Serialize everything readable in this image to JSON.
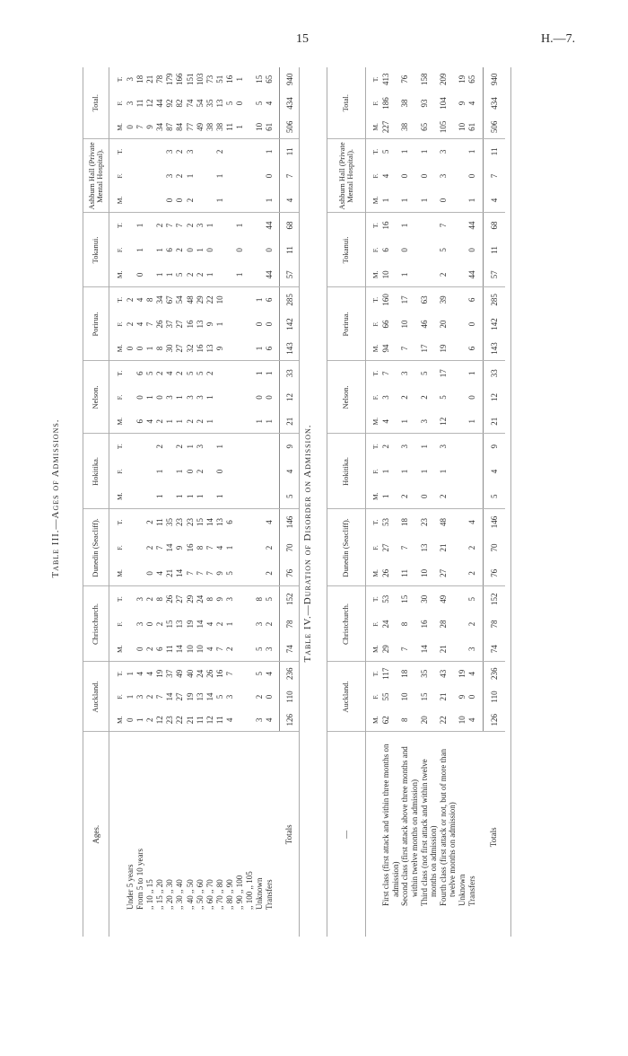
{
  "page": {
    "number": "15",
    "reference": "H.—7."
  },
  "sex_labels": [
    "M.",
    "F.",
    "T."
  ],
  "table_iii": {
    "title": "Table III.—Ages of Admissions.",
    "label_header": "Ages.",
    "columns": [
      "Auckland.",
      "Christchurch.",
      "Dunedin (Seacliff).",
      "Hokitika.",
      "Nelson.",
      "Porirua.",
      "Tokanui.",
      "Ashburn Hall (Private Mental Hospital).",
      "Total."
    ],
    "rows": [
      {
        "label": "Under 5 years",
        "cells": [
          [
            0,
            1,
            1
          ],
          [
            "",
            "",
            ""
          ],
          [
            "",
            "",
            ""
          ],
          [
            "",
            "",
            ""
          ],
          [
            "",
            "",
            ""
          ],
          [
            0,
            2,
            2
          ],
          [
            "",
            "",
            ""
          ],
          [
            "",
            "",
            ""
          ],
          [
            0,
            3,
            3
          ]
        ]
      },
      {
        "label": "From 5 to 10 years",
        "cells": [
          [
            1,
            3,
            4
          ],
          [
            0,
            3,
            3
          ],
          [
            "",
            "",
            ""
          ],
          [
            "",
            "",
            ""
          ],
          [
            6,
            0,
            6
          ],
          [
            0,
            4,
            4
          ],
          [
            0,
            1,
            1
          ],
          [
            "",
            "",
            ""
          ],
          [
            7,
            11,
            18
          ]
        ]
      },
      {
        "label": ",, 10 ,, 15",
        "cells": [
          [
            2,
            2,
            4
          ],
          [
            2,
            0,
            2
          ],
          [
            0,
            2,
            2
          ],
          [
            "",
            "",
            ""
          ],
          [
            4,
            1,
            5
          ],
          [
            1,
            7,
            8
          ],
          [
            "",
            "",
            ""
          ],
          [
            "",
            "",
            ""
          ],
          [
            9,
            12,
            21
          ]
        ]
      },
      {
        "label": ",, 15 ,, 20",
        "cells": [
          [
            12,
            7,
            19
          ],
          [
            6,
            2,
            8
          ],
          [
            4,
            7,
            11
          ],
          [
            1,
            1,
            2
          ],
          [
            2,
            0,
            2
          ],
          [
            8,
            26,
            34
          ],
          [
            1,
            1,
            2
          ],
          [
            "",
            "",
            ""
          ],
          [
            34,
            44,
            78
          ]
        ]
      },
      {
        "label": ",, 20 ,, 30",
        "cells": [
          [
            23,
            14,
            37
          ],
          [
            11,
            15,
            26
          ],
          [
            21,
            14,
            35
          ],
          [
            "",
            "",
            ""
          ],
          [
            1,
            3,
            4
          ],
          [
            30,
            37,
            67
          ],
          [
            1,
            6,
            7
          ],
          [
            0,
            3,
            3
          ],
          [
            87,
            92,
            179
          ]
        ]
      },
      {
        "label": ",, 30 ,, 40",
        "cells": [
          [
            22,
            27,
            49
          ],
          [
            14,
            13,
            27
          ],
          [
            14,
            9,
            23
          ],
          [
            1,
            1,
            2
          ],
          [
            1,
            1,
            2
          ],
          [
            27,
            27,
            54
          ],
          [
            5,
            2,
            7
          ],
          [
            0,
            2,
            2
          ],
          [
            84,
            82,
            166
          ]
        ]
      },
      {
        "label": ",, 40 ,, 50",
        "cells": [
          [
            21,
            19,
            40
          ],
          [
            10,
            19,
            29
          ],
          [
            7,
            16,
            23
          ],
          [
            1,
            0,
            1
          ],
          [
            2,
            3,
            5
          ],
          [
            32,
            16,
            48
          ],
          [
            2,
            0,
            2
          ],
          [
            2,
            1,
            3
          ],
          [
            77,
            74,
            151
          ]
        ]
      },
      {
        "label": ",, 50 ,, 60",
        "cells": [
          [
            11,
            13,
            24
          ],
          [
            10,
            14,
            24
          ],
          [
            7,
            8,
            15
          ],
          [
            1,
            2,
            3
          ],
          [
            2,
            3,
            5
          ],
          [
            16,
            13,
            29
          ],
          [
            2,
            1,
            3
          ],
          [
            "",
            "",
            ""
          ],
          [
            49,
            54,
            103
          ]
        ]
      },
      {
        "label": ",, 60 ,, 70",
        "cells": [
          [
            12,
            14,
            26
          ],
          [
            4,
            4,
            8
          ],
          [
            7,
            7,
            14
          ],
          [
            "",
            "",
            ""
          ],
          [
            1,
            1,
            2
          ],
          [
            13,
            9,
            22
          ],
          [
            1,
            0,
            1
          ],
          [
            "",
            "",
            ""
          ],
          [
            38,
            35,
            73
          ]
        ]
      },
      {
        "label": ",, 70 ,, 80",
        "cells": [
          [
            11,
            5,
            16
          ],
          [
            7,
            2,
            9
          ],
          [
            9,
            4,
            13
          ],
          [
            1,
            0,
            1
          ],
          [
            "",
            "",
            ""
          ],
          [
            9,
            1,
            10
          ],
          [
            "",
            "",
            ""
          ],
          [
            1,
            1,
            2
          ],
          [
            38,
            13,
            51
          ]
        ]
      },
      {
        "label": ",, 80 ,, 90",
        "cells": [
          [
            4,
            3,
            7
          ],
          [
            2,
            1,
            3
          ],
          [
            5,
            1,
            6
          ],
          [
            "",
            "",
            ""
          ],
          [
            "",
            "",
            ""
          ],
          [
            "",
            "",
            ""
          ],
          [
            "",
            "",
            ""
          ],
          [
            "",
            "",
            ""
          ],
          [
            11,
            5,
            16
          ]
        ]
      },
      {
        "label": ",, 90 ,, 100",
        "cells": [
          [
            "",
            "",
            ""
          ],
          [
            "",
            "",
            ""
          ],
          [
            "",
            "",
            ""
          ],
          [
            "",
            "",
            ""
          ],
          [
            "",
            "",
            ""
          ],
          [
            "",
            "",
            ""
          ],
          [
            1,
            0,
            1
          ],
          [
            "",
            "",
            ""
          ],
          [
            1,
            0,
            1
          ]
        ]
      },
      {
        "label": ",, 100 ,, 105",
        "cells": [
          [
            "",
            "",
            ""
          ],
          [
            "",
            "",
            ""
          ],
          [
            "",
            "",
            ""
          ],
          [
            "",
            "",
            ""
          ],
          [
            "",
            "",
            ""
          ],
          [
            "",
            "",
            ""
          ],
          [
            "",
            "",
            ""
          ],
          [
            "",
            "",
            ""
          ],
          [
            "",
            "",
            ""
          ]
        ]
      },
      {
        "label": "Unknown",
        "cells": [
          [
            3,
            2,
            5
          ],
          [
            5,
            3,
            8
          ],
          [
            "",
            "",
            ""
          ],
          [
            "",
            "",
            ""
          ],
          [
            1,
            0,
            1
          ],
          [
            1,
            0,
            1
          ],
          [
            "",
            "",
            ""
          ],
          [
            "",
            "",
            ""
          ],
          [
            10,
            5,
            15
          ]
        ]
      },
      {
        "label": "Transfers",
        "cells": [
          [
            4,
            0,
            4
          ],
          [
            3,
            2,
            5
          ],
          [
            2,
            2,
            4
          ],
          [
            "",
            "",
            ""
          ],
          [
            1,
            0,
            1
          ],
          [
            6,
            0,
            6
          ],
          [
            44,
            0,
            44
          ],
          [
            1,
            0,
            1
          ],
          [
            61,
            4,
            65
          ]
        ]
      }
    ],
    "totals": {
      "label": "Totals",
      "cells": [
        [
          126,
          110,
          236
        ],
        [
          74,
          78,
          152
        ],
        [
          76,
          70,
          146
        ],
        [
          5,
          4,
          9
        ],
        [
          21,
          12,
          33
        ],
        [
          143,
          142,
          285
        ],
        [
          57,
          11,
          68
        ],
        [
          4,
          7,
          11
        ],
        [
          506,
          434,
          940
        ]
      ]
    }
  },
  "table_iv": {
    "title": "Table IV.—Duration of Disorder on Admission.",
    "label_header": "—",
    "columns": [
      "Auckland.",
      "Christchurch.",
      "Dunedin (Seacliff).",
      "Hokitika.",
      "Nelson.",
      "Porirua.",
      "Tokanui.",
      "Ashburn Hall (Private Mental Hospital).",
      "Total."
    ],
    "rows": [
      {
        "label": "First class (first attack and within three months on admission)",
        "cells": [
          [
            62,
            55,
            117
          ],
          [
            29,
            24,
            53
          ],
          [
            26,
            27,
            53
          ],
          [
            1,
            1,
            2
          ],
          [
            4,
            3,
            7
          ],
          [
            94,
            66,
            160
          ],
          [
            10,
            6,
            16
          ],
          [
            1,
            4,
            5
          ],
          [
            227,
            186,
            413
          ]
        ]
      },
      {
        "label": "Second class (first attack above three months and within twelve months on admission)",
        "cells": [
          [
            8,
            10,
            18
          ],
          [
            7,
            8,
            15
          ],
          [
            11,
            7,
            18
          ],
          [
            2,
            1,
            3
          ],
          [
            1,
            2,
            3
          ],
          [
            7,
            10,
            17
          ],
          [
            1,
            0,
            1
          ],
          [
            1,
            0,
            1
          ],
          [
            38,
            38,
            76
          ]
        ]
      },
      {
        "label": "Third class (not first attack and within twelve months on admission)",
        "cells": [
          [
            20,
            15,
            35
          ],
          [
            14,
            16,
            30
          ],
          [
            10,
            13,
            23
          ],
          [
            0,
            1,
            1
          ],
          [
            3,
            2,
            5
          ],
          [
            17,
            46,
            63
          ],
          [
            "",
            "",
            ""
          ],
          [
            1,
            0,
            1
          ],
          [
            65,
            93,
            158
          ]
        ]
      },
      {
        "label": "Fourth class (first attack or not, but of more than twelve months on admission)",
        "cells": [
          [
            22,
            21,
            43
          ],
          [
            21,
            28,
            49
          ],
          [
            27,
            21,
            48
          ],
          [
            2,
            1,
            3
          ],
          [
            12,
            5,
            17
          ],
          [
            19,
            20,
            39
          ],
          [
            2,
            5,
            7
          ],
          [
            0,
            3,
            3
          ],
          [
            105,
            104,
            209
          ]
        ]
      },
      {
        "label": "Unknown",
        "cells": [
          [
            10,
            9,
            19
          ],
          [
            "",
            "",
            ""
          ],
          [
            "",
            "",
            ""
          ],
          [
            "",
            "",
            ""
          ],
          [
            "",
            "",
            ""
          ],
          [
            "",
            "",
            ""
          ],
          [
            "",
            "",
            ""
          ],
          [
            "",
            "",
            ""
          ],
          [
            10,
            9,
            19
          ]
        ]
      },
      {
        "label": "Transfers",
        "cells": [
          [
            4,
            0,
            4
          ],
          [
            3,
            2,
            5
          ],
          [
            2,
            2,
            4
          ],
          [
            "",
            "",
            ""
          ],
          [
            1,
            0,
            1
          ],
          [
            6,
            0,
            6
          ],
          [
            44,
            0,
            44
          ],
          [
            1,
            0,
            1
          ],
          [
            61,
            4,
            65
          ]
        ]
      }
    ],
    "totals": {
      "label": "Totals",
      "cells": [
        [
          126,
          110,
          236
        ],
        [
          74,
          78,
          152
        ],
        [
          76,
          70,
          146
        ],
        [
          5,
          4,
          9
        ],
        [
          21,
          12,
          33
        ],
        [
          143,
          142,
          285
        ],
        [
          57,
          11,
          68
        ],
        [
          4,
          7,
          11
        ],
        [
          506,
          434,
          940
        ]
      ]
    }
  }
}
